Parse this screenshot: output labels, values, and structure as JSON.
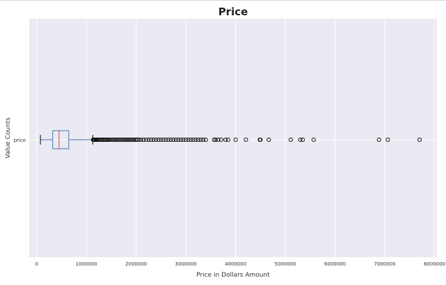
{
  "chart_data": {
    "type": "box",
    "orientation": "horizontal",
    "title": "Price",
    "xlabel": "Price in Dollars Amount",
    "ylabel": "Value Counts",
    "categories": [
      "price"
    ],
    "xlim": [
      -150000,
      8050000
    ],
    "xticks": [
      0,
      1000000,
      2000000,
      3000000,
      4000000,
      5000000,
      6000000,
      7000000,
      8000000
    ],
    "xtick_labels": [
      "0",
      "1000000",
      "2000000",
      "3000000",
      "4000000",
      "5000000",
      "6000000",
      "7000000",
      "8000000"
    ],
    "grid": true,
    "box": {
      "whisker_low": 75000,
      "q1": 322000,
      "median": 450000,
      "q3": 645000,
      "whisker_high": 1129000
    },
    "outliers": [
      1135000,
      1150000,
      1170000,
      1190000,
      1210000,
      1230000,
      1250000,
      1275000,
      1300000,
      1325000,
      1350000,
      1375000,
      1400000,
      1425000,
      1450000,
      1480000,
      1510000,
      1540000,
      1570000,
      1600000,
      1630000,
      1660000,
      1690000,
      1720000,
      1750000,
      1780000,
      1810000,
      1840000,
      1870000,
      1900000,
      1930000,
      1960000,
      1990000,
      2020000,
      2060000,
      2100000,
      2150000,
      2200000,
      2250000,
      2300000,
      2350000,
      2400000,
      2450000,
      2500000,
      2550000,
      2600000,
      2650000,
      2700000,
      2750000,
      2800000,
      2850000,
      2900000,
      2950000,
      3000000,
      3050000,
      3100000,
      3150000,
      3200000,
      3250000,
      3300000,
      3350000,
      3400000,
      3567000,
      3600000,
      3650000,
      3710000,
      3800000,
      3850000,
      4000000,
      4208000,
      4489000,
      4500000,
      4668000,
      5110000,
      5300000,
      5350000,
      5570000,
      6885000,
      7062000,
      7700000
    ],
    "colors": {
      "background": "#eaeaf2",
      "grid": "#ffffff",
      "box": "#4c72b0",
      "median": "#c44e52",
      "outlier": "#000000"
    }
  }
}
